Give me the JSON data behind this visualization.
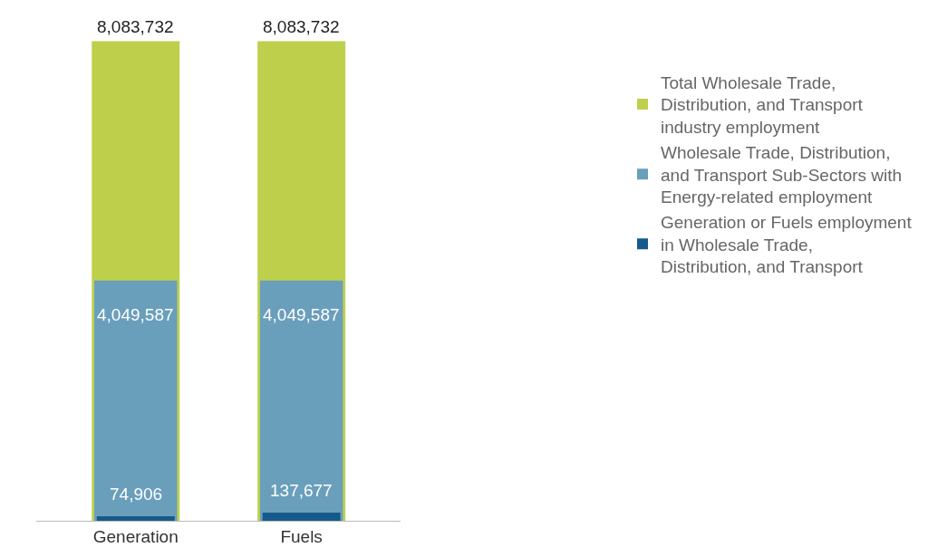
{
  "chart_data": {
    "type": "bar",
    "categories": [
      "Generation",
      "Fuels"
    ],
    "series": [
      {
        "name": "Generation or Fuels employment in Wholesale Trade, Distribution, and Transport",
        "color": "#165a8c",
        "values": [
          74906,
          137677
        ],
        "value_labels": [
          "74,906",
          "137,677"
        ]
      },
      {
        "name": "Wholesale Trade, Distribution, and Transport Sub-Sectors with Energy-related employment",
        "color": "#6a9fbc",
        "values": [
          4049587,
          4049587
        ],
        "value_labels": [
          "4,049,587",
          "4,049,587"
        ]
      },
      {
        "name": "Total Wholesale Trade, Distribution, and Transport industry employment",
        "color": "#bed04b",
        "values": [
          8083732,
          8083732
        ],
        "value_labels": [
          "8,083,732",
          "8,083,732"
        ]
      }
    ],
    "legend": "right"
  }
}
